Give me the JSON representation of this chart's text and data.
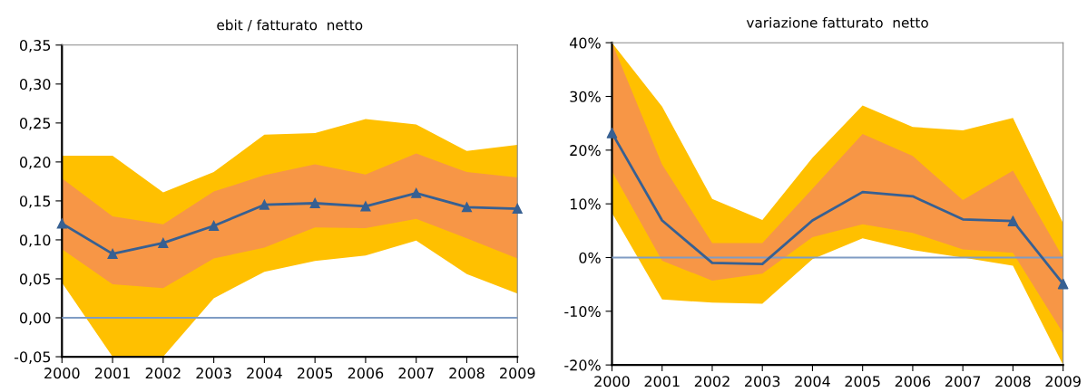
{
  "chart_data": [
    {
      "type": "line",
      "title": "ebit / fatturato  netto",
      "categories": [
        "2000",
        "2001",
        "2002",
        "2003",
        "2004",
        "2005",
        "2006",
        "2007",
        "2008",
        "2009"
      ],
      "series": [
        {
          "color": "#ffc000",
          "values": [
            null,
            null,
            null,
            null,
            null,
            null,
            null,
            null,
            null,
            null
          ],
          "lower": [
            0.045,
            -0.05,
            -0.05,
            0.025,
            0.059,
            0.073,
            0.08,
            0.099,
            0.056,
            0.031
          ],
          "upper": [
            0.208,
            0.208,
            0.161,
            0.187,
            0.235,
            0.237,
            0.255,
            0.248,
            0.214,
            0.222
          ]
        },
        {
          "color": "#f79646",
          "values": [
            null,
            null,
            null,
            null,
            null,
            null,
            null,
            null,
            null,
            null
          ],
          "lower": [
            0.088,
            0.043,
            0.038,
            0.076,
            0.09,
            0.116,
            0.115,
            0.127,
            0.102,
            0.076
          ],
          "upper": [
            0.179,
            0.13,
            0.12,
            0.162,
            0.183,
            0.197,
            0.184,
            0.211,
            0.187,
            0.18
          ]
        },
        {
          "color": "#376092",
          "marker": "triangle",
          "values": [
            0.121,
            0.082,
            0.096,
            0.118,
            0.145,
            0.147,
            0.143,
            0.16,
            0.142,
            0.14
          ]
        }
      ],
      "ylim": [
        -0.05,
        0.35
      ],
      "yticks": [
        {
          "value": -0.05,
          "label": "-0,05"
        },
        {
          "value": 0,
          "label": "0,00"
        },
        {
          "value": 0.05,
          "label": "0,05"
        },
        {
          "value": 0.1,
          "label": "0,10"
        },
        {
          "value": 0.15,
          "label": "0,15"
        },
        {
          "value": 0.2,
          "label": "0,20"
        },
        {
          "value": 0.25,
          "label": "0,25"
        },
        {
          "value": 0.3,
          "label": "0,30"
        },
        {
          "value": 0.35,
          "label": "0,35"
        }
      ],
      "ref_lines": [
        {
          "axis": "y",
          "value": 0,
          "color": "#7f9cc4"
        }
      ],
      "grid": false,
      "legend": false
    },
    {
      "type": "line",
      "title": "variazione fatturato  netto",
      "categories": [
        "2000",
        "2001",
        "2002",
        "2003",
        "2004",
        "2005",
        "2006",
        "2007",
        "2008",
        "2009"
      ],
      "series": [
        {
          "color": "#ffc000",
          "values": [
            null,
            null,
            null,
            null,
            null,
            null,
            null,
            null,
            null,
            null
          ],
          "lower": [
            8.3,
            -7.8,
            -8.4,
            -8.6,
            -0.3,
            3.6,
            1.4,
            0,
            -1.5,
            -20
          ],
          "upper": [
            40,
            28.1,
            10.9,
            7.0,
            18.6,
            28.3,
            24.3,
            23.7,
            26.0,
            6.4
          ]
        },
        {
          "color": "#f79646",
          "values": [
            null,
            null,
            null,
            null,
            null,
            null,
            null,
            null,
            null,
            null
          ],
          "lower": [
            16.1,
            -0.6,
            -4.3,
            -3.0,
            3.8,
            6.2,
            4.6,
            1.5,
            0.9,
            -14.1
          ],
          "upper": [
            40,
            17.3,
            2.7,
            2.7,
            12.8,
            23.0,
            18.9,
            10.7,
            16.2,
            0
          ]
        },
        {
          "color": "#376092",
          "marker": "none",
          "values": [
            23.2,
            6.9,
            -1.0,
            -1.2,
            6.9,
            12.2,
            11.4,
            7.1,
            6.8,
            -4.9
          ]
        },
        {
          "type": "scatter",
          "color": "#376092",
          "marker": "triangle",
          "values": [
            23.2,
            null,
            null,
            null,
            null,
            null,
            null,
            null,
            6.8,
            -4.9
          ]
        }
      ],
      "ylim": [
        -20,
        40
      ],
      "yticks": [
        {
          "value": -20,
          "label": "-20%"
        },
        {
          "value": -10,
          "label": "-10%"
        },
        {
          "value": 0,
          "label": "0%"
        },
        {
          "value": 10,
          "label": "10%"
        },
        {
          "value": 20,
          "label": "20%"
        },
        {
          "value": 30,
          "label": "30%"
        },
        {
          "value": 40,
          "label": "40%"
        }
      ],
      "ref_lines": [
        {
          "axis": "y",
          "value": 0,
          "color": "#7f9cc4"
        }
      ],
      "grid": false,
      "legend": false
    }
  ]
}
